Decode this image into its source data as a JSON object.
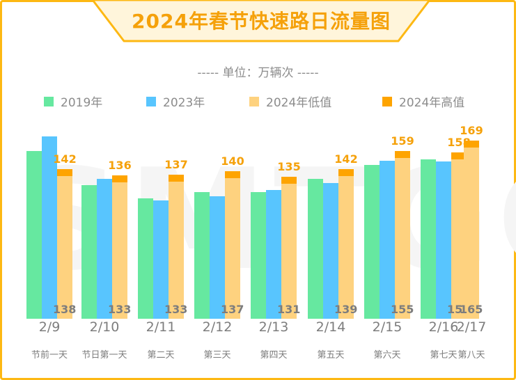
{
  "title": "2024年春节快速路日流量图",
  "unit_label": "----- 单位：万辆次 -----",
  "watermark": "SMTGC",
  "colors": {
    "2019": "#66E8A0",
    "2023": "#58C5FE",
    "low": "#FED27F",
    "high": "#FEA400",
    "border": "#FDB813",
    "title": "#F5A10A"
  },
  "legend": [
    {
      "label": "2019年",
      "color": "#66E8A0"
    },
    {
      "label": "2023年",
      "color": "#58C5FE"
    },
    {
      "label": "2024年低值",
      "color": "#FED27F"
    },
    {
      "label": "2024年高值",
      "color": "#FEA400"
    }
  ],
  "chart_data": {
    "type": "bar",
    "title": "2024年春节快速路日流量图",
    "subtitle": "单位：万辆次",
    "categories": [
      "2/9",
      "2/10",
      "2/11",
      "2/12",
      "2/13",
      "2/14",
      "2/15",
      "2/16",
      "2/17"
    ],
    "category_sublabels": [
      "节前一天",
      "节日第一天",
      "第二天",
      "第三天",
      "第四天",
      "第五天",
      "第六天",
      "第七天",
      "第八天"
    ],
    "series": [
      {
        "name": "2019年",
        "values": [
          159,
          127,
          114,
          120,
          120,
          133,
          146,
          151,
          null
        ]
      },
      {
        "name": "2023年",
        "values": [
          173,
          133,
          112,
          116,
          122,
          129,
          150,
          149,
          null
        ]
      },
      {
        "name": "2024年低值",
        "values": [
          138,
          133,
          133,
          137,
          131,
          139,
          155,
          154,
          165
        ]
      },
      {
        "name": "2024年高值",
        "values": [
          142,
          136,
          137,
          140,
          135,
          142,
          159,
          158,
          169
        ]
      }
    ],
    "xlabel": "",
    "ylabel": "万辆次",
    "grid": false,
    "legend_position": "top"
  }
}
